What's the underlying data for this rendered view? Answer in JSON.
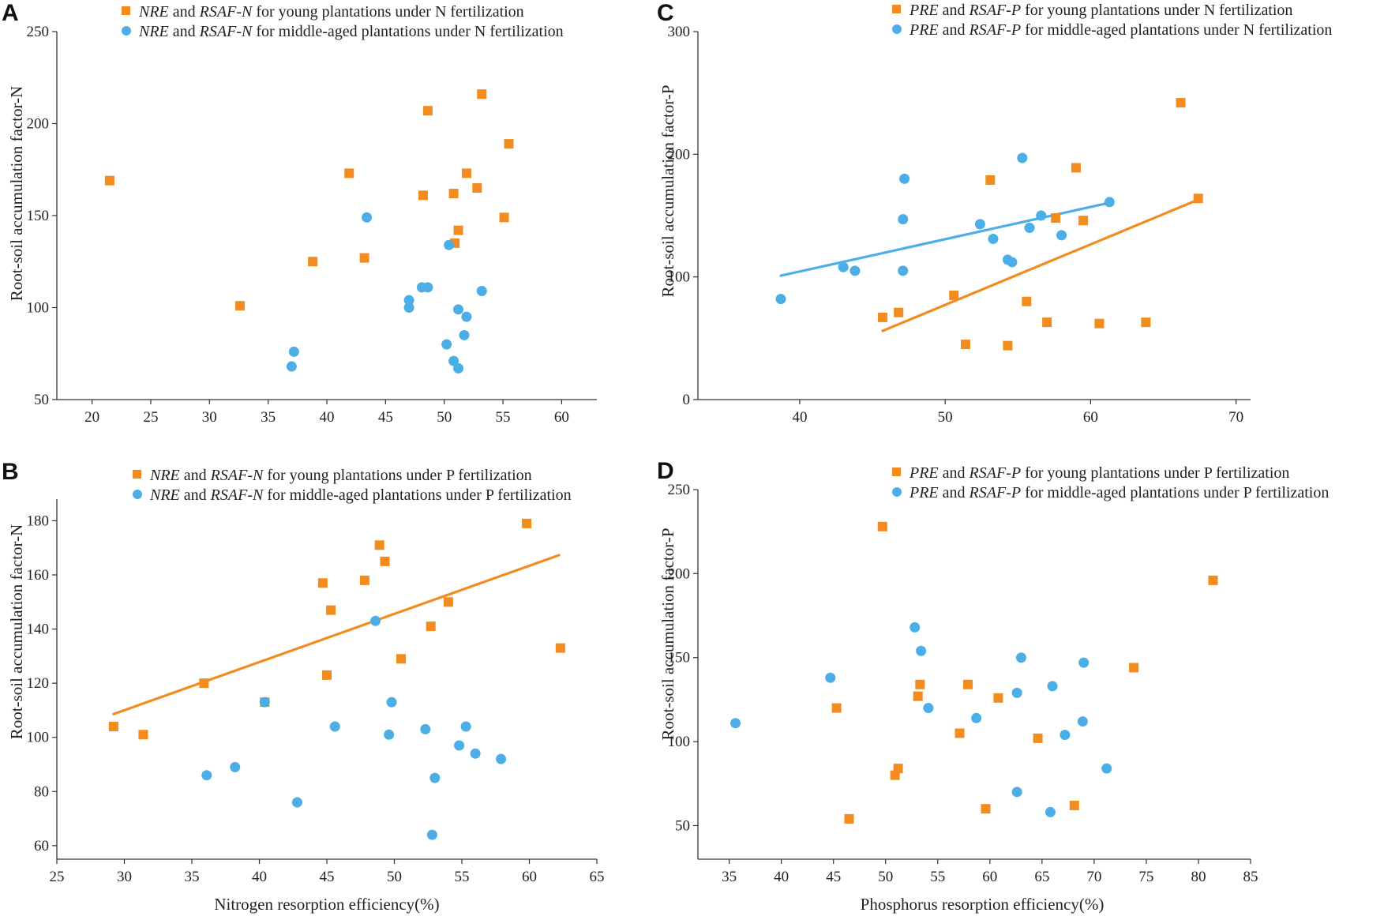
{
  "colors": {
    "young": "#F28C1E",
    "middle": "#4BAEE6",
    "axis": "#333333"
  },
  "chart_data": [
    {
      "panel": "A",
      "type": "scatter",
      "xlabel": "",
      "ylabel": "Root-soil accumulation factor-N",
      "xlim": [
        17,
        63
      ],
      "ylim": [
        50,
        250
      ],
      "xticks": [
        "20",
        "25",
        "30",
        "35",
        "40",
        "45",
        "50",
        "55",
        "60"
      ],
      "yticks": [
        "50",
        "100",
        "150",
        "200",
        "250"
      ],
      "legend": [
        {
          "key": "young",
          "parts": [
            {
              "t": "NRE",
              "i": true
            },
            {
              "t": " and ",
              "i": false
            },
            {
              "t": "RSAF-N",
              "i": true
            },
            {
              "t": " for young plantations under N fertilization",
              "i": false
            }
          ]
        },
        {
          "key": "middle",
          "parts": [
            {
              "t": "NRE",
              "i": true
            },
            {
              "t": " and ",
              "i": false
            },
            {
              "t": "RSAF-N",
              "i": true
            },
            {
              "t": " for middle-aged plantations under N fertilization",
              "i": false
            }
          ]
        }
      ],
      "series": [
        {
          "name": "young",
          "marker": "square",
          "fit": null,
          "points": [
            [
              21.5,
              169
            ],
            [
              32.6,
              101
            ],
            [
              38.8,
              125
            ],
            [
              41.9,
              173
            ],
            [
              43.2,
              127
            ],
            [
              48.2,
              161
            ],
            [
              48.6,
              207
            ],
            [
              50.8,
              162
            ],
            [
              50.9,
              135
            ],
            [
              51.2,
              142
            ],
            [
              51.9,
              173
            ],
            [
              52.8,
              165
            ],
            [
              53.2,
              216
            ],
            [
              55.1,
              149
            ],
            [
              55.5,
              189
            ]
          ]
        },
        {
          "name": "middle",
          "marker": "circle",
          "fit": null,
          "points": [
            [
              37.0,
              68
            ],
            [
              37.2,
              76
            ],
            [
              43.4,
              149
            ],
            [
              47.0,
              100
            ],
            [
              47.0,
              104
            ],
            [
              48.1,
              111
            ],
            [
              48.6,
              111
            ],
            [
              50.2,
              80
            ],
            [
              50.4,
              134
            ],
            [
              50.8,
              71
            ],
            [
              51.2,
              99
            ],
            [
              51.2,
              67
            ],
            [
              51.7,
              85
            ],
            [
              51.9,
              95
            ],
            [
              53.2,
              109
            ]
          ]
        }
      ]
    },
    {
      "panel": "B",
      "type": "scatter",
      "xlabel": "Nitrogen resorption efficiency(%)",
      "ylabel": "Root-soil accumulation factor-N",
      "xlim": [
        25,
        65
      ],
      "ylim": [
        55,
        188
      ],
      "xticks": [
        "25",
        "30",
        "35",
        "40",
        "45",
        "50",
        "55",
        "60",
        "65"
      ],
      "yticks": [
        "60",
        "80",
        "100",
        "120",
        "140",
        "160",
        "180"
      ],
      "legend": [
        {
          "key": "young",
          "parts": [
            {
              "t": "NRE",
              "i": true
            },
            {
              "t": " and ",
              "i": false
            },
            {
              "t": "RSAF-N",
              "i": true
            },
            {
              "t": " for young plantations under P fertilization",
              "i": false
            }
          ]
        },
        {
          "key": "middle",
          "parts": [
            {
              "t": "NRE",
              "i": true
            },
            {
              "t": " and ",
              "i": false
            },
            {
              "t": "RSAF-N",
              "i": true
            },
            {
              "t": " for middle-aged plantations under P fertilization",
              "i": false
            }
          ]
        }
      ],
      "series": [
        {
          "name": "young",
          "marker": "square",
          "fit": [
            [
              29.2,
              108.6
            ],
            [
              62.2,
              167.3
            ]
          ],
          "points": [
            [
              29.2,
              104
            ],
            [
              31.4,
              101
            ],
            [
              35.9,
              120
            ],
            [
              40.4,
              113
            ],
            [
              44.7,
              157
            ],
            [
              45.0,
              123
            ],
            [
              45.3,
              147
            ],
            [
              47.8,
              158
            ],
            [
              48.9,
              171
            ],
            [
              49.3,
              165
            ],
            [
              50.5,
              129
            ],
            [
              52.7,
              141
            ],
            [
              54.0,
              150
            ],
            [
              59.8,
              179
            ],
            [
              62.3,
              133
            ]
          ]
        },
        {
          "name": "middle",
          "marker": "circle",
          "fit": null,
          "points": [
            [
              36.1,
              86
            ],
            [
              38.2,
              89
            ],
            [
              40.4,
              113
            ],
            [
              42.8,
              76
            ],
            [
              45.6,
              104
            ],
            [
              48.6,
              143
            ],
            [
              49.6,
              101
            ],
            [
              49.8,
              113
            ],
            [
              52.3,
              103
            ],
            [
              52.8,
              64
            ],
            [
              53.0,
              85
            ],
            [
              54.8,
              97
            ],
            [
              55.3,
              104
            ],
            [
              56.0,
              94
            ],
            [
              57.9,
              92
            ]
          ]
        }
      ]
    },
    {
      "panel": "C",
      "type": "scatter",
      "xlabel": "",
      "ylabel": "Root-soil accumulation factor-P",
      "xlim": [
        33,
        71
      ],
      "ylim": [
        0,
        300
      ],
      "xticks": [
        "40",
        "50",
        "60",
        "70"
      ],
      "yticks": [
        "0",
        "100",
        "200",
        "300"
      ],
      "legend": [
        {
          "key": "young",
          "parts": [
            {
              "t": "PRE",
              "i": true
            },
            {
              "t": " and ",
              "i": false
            },
            {
              "t": "RSAF-P",
              "i": true
            },
            {
              "t": " for young plantations under N fertilization",
              "i": false
            }
          ]
        },
        {
          "key": "middle",
          "parts": [
            {
              "t": "PRE",
              "i": true
            },
            {
              "t": " and ",
              "i": false
            },
            {
              "t": "RSAF-P",
              "i": true
            },
            {
              "t": " for middle-aged plantations under N fertilization",
              "i": false
            }
          ]
        }
      ],
      "series": [
        {
          "name": "young",
          "marker": "square",
          "fit": [
            [
              45.7,
              56
            ],
            [
              67.4,
              163
            ]
          ],
          "points": [
            [
              45.7,
              67
            ],
            [
              46.8,
              71
            ],
            [
              50.6,
              85
            ],
            [
              51.4,
              45
            ],
            [
              53.1,
              179
            ],
            [
              54.3,
              44
            ],
            [
              55.6,
              80
            ],
            [
              57.0,
              63
            ],
            [
              57.6,
              148
            ],
            [
              59.0,
              189
            ],
            [
              59.5,
              146
            ],
            [
              60.6,
              62
            ],
            [
              63.8,
              63
            ],
            [
              66.2,
              242
            ],
            [
              67.4,
              164
            ]
          ]
        },
        {
          "name": "middle",
          "marker": "circle",
          "fit": [
            [
              38.7,
              101
            ],
            [
              61.5,
              161
            ]
          ],
          "points": [
            [
              38.7,
              82
            ],
            [
              43.0,
              108
            ],
            [
              43.8,
              105
            ],
            [
              47.1,
              105
            ],
            [
              47.1,
              147
            ],
            [
              47.2,
              180
            ],
            [
              52.4,
              143
            ],
            [
              53.3,
              131
            ],
            [
              54.3,
              114
            ],
            [
              54.6,
              112
            ],
            [
              55.3,
              197
            ],
            [
              55.8,
              140
            ],
            [
              56.6,
              150
            ],
            [
              58.0,
              134
            ],
            [
              61.3,
              161
            ]
          ]
        }
      ]
    },
    {
      "panel": "D",
      "type": "scatter",
      "xlabel": "Phosphorus resorption efficiency(%)",
      "ylabel": "Root-soil accumulation factor-P",
      "xlim": [
        32,
        85
      ],
      "ylim": [
        30,
        250
      ],
      "xticks": [
        "35",
        "40",
        "45",
        "50",
        "55",
        "60",
        "65",
        "70",
        "75",
        "80",
        "85"
      ],
      "yticks": [
        "50",
        "100",
        "150",
        "200",
        "250"
      ],
      "legend": [
        {
          "key": "young",
          "parts": [
            {
              "t": "PRE",
              "i": true
            },
            {
              "t": " and ",
              "i": false
            },
            {
              "t": "RSAF-P",
              "i": true
            },
            {
              "t": " for young plantations under P fertilization",
              "i": false
            }
          ]
        },
        {
          "key": "middle",
          "parts": [
            {
              "t": "PRE",
              "i": true
            },
            {
              "t": " and ",
              "i": false
            },
            {
              "t": "RSAF-P",
              "i": true
            },
            {
              "t": " for middle-aged plantations under P fertilization",
              "i": false
            }
          ]
        }
      ],
      "series": [
        {
          "name": "young",
          "marker": "square",
          "fit": null,
          "points": [
            [
              45.3,
              120
            ],
            [
              46.5,
              54
            ],
            [
              49.7,
              228
            ],
            [
              50.9,
              80
            ],
            [
              51.2,
              84
            ],
            [
              53.1,
              127
            ],
            [
              53.3,
              134
            ],
            [
              57.1,
              105
            ],
            [
              57.9,
              134
            ],
            [
              59.6,
              60
            ],
            [
              60.8,
              126
            ],
            [
              64.6,
              102
            ],
            [
              68.1,
              62
            ],
            [
              73.8,
              144
            ],
            [
              81.4,
              196
            ]
          ]
        },
        {
          "name": "middle",
          "marker": "circle",
          "fit": null,
          "points": [
            [
              35.6,
              111
            ],
            [
              44.7,
              138
            ],
            [
              52.8,
              168
            ],
            [
              53.4,
              154
            ],
            [
              54.1,
              120
            ],
            [
              58.7,
              114
            ],
            [
              62.6,
              70
            ],
            [
              62.6,
              129
            ],
            [
              63.0,
              150
            ],
            [
              65.8,
              58
            ],
            [
              66.0,
              133
            ],
            [
              67.2,
              104
            ],
            [
              68.9,
              112
            ],
            [
              69.0,
              147
            ],
            [
              71.2,
              84
            ]
          ]
        }
      ]
    }
  ]
}
